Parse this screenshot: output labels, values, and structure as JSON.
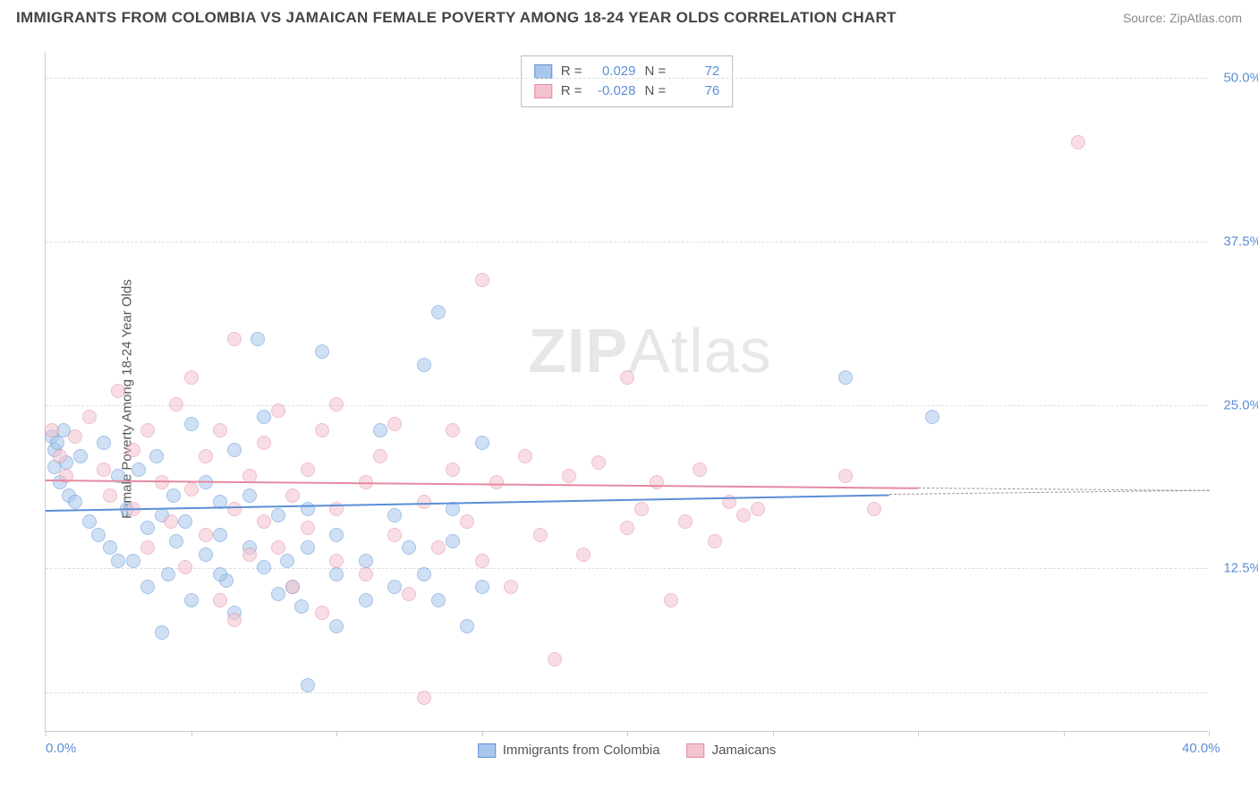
{
  "title": "IMMIGRANTS FROM COLOMBIA VS JAMAICAN FEMALE POVERTY AMONG 18-24 YEAR OLDS CORRELATION CHART",
  "source": "Source: ZipAtlas.com",
  "y_axis_label": "Female Poverty Among 18-24 Year Olds",
  "watermark_bold": "ZIP",
  "watermark_light": "Atlas",
  "chart": {
    "type": "scatter",
    "xlim": [
      0,
      40
    ],
    "ylim": [
      0,
      52
    ],
    "x_ticks": [
      0,
      5,
      10,
      15,
      20,
      25,
      30,
      35,
      40
    ],
    "x_tick_labels": {
      "0": "0.0%",
      "40": "40.0%"
    },
    "y_ticks": [
      12.5,
      25.0,
      37.5,
      50.0
    ],
    "y_tick_labels": [
      "12.5%",
      "25.0%",
      "37.5%",
      "50.0%"
    ],
    "grid_y": [
      3,
      12.5,
      25.0,
      37.5,
      50.0
    ],
    "background_color": "#ffffff",
    "grid_color": "#dddddd",
    "axis_color": "#cccccc",
    "tick_label_color": "#5b8fd6",
    "point_radius": 8,
    "point_opacity": 0.55,
    "series": [
      {
        "name": "Immigrants from Colombia",
        "fill": "#a9c7ec",
        "stroke": "#5b8fd6",
        "R": "0.029",
        "N": "72",
        "trend": {
          "x1": 0,
          "y1": 17.0,
          "x2": 29,
          "y2": 18.2,
          "dash_to_x": 40,
          "dash_to_y": 18.5
        },
        "points": [
          [
            0.2,
            22.5
          ],
          [
            0.3,
            21.5
          ],
          [
            0.3,
            20.2
          ],
          [
            0.4,
            22.0
          ],
          [
            0.5,
            19.0
          ],
          [
            0.6,
            23.0
          ],
          [
            0.7,
            20.5
          ],
          [
            0.8,
            18.0
          ],
          [
            1.0,
            17.5
          ],
          [
            1.2,
            21.0
          ],
          [
            1.5,
            16.0
          ],
          [
            1.8,
            15.0
          ],
          [
            2.0,
            22.0
          ],
          [
            2.2,
            14.0
          ],
          [
            2.5,
            19.5
          ],
          [
            2.8,
            17.0
          ],
          [
            3.0,
            13.0
          ],
          [
            3.2,
            20.0
          ],
          [
            3.5,
            11.0
          ],
          [
            3.5,
            15.5
          ],
          [
            3.8,
            21.0
          ],
          [
            4.0,
            7.5
          ],
          [
            4.2,
            12.0
          ],
          [
            4.4,
            18.0
          ],
          [
            4.5,
            14.5
          ],
          [
            4.8,
            16.0
          ],
          [
            5.0,
            10.0
          ],
          [
            5.0,
            23.5
          ],
          [
            5.5,
            13.5
          ],
          [
            5.5,
            19.0
          ],
          [
            6.0,
            15.0
          ],
          [
            6.0,
            17.5
          ],
          [
            6.2,
            11.5
          ],
          [
            6.5,
            9.0
          ],
          [
            6.5,
            21.5
          ],
          [
            7.0,
            14.0
          ],
          [
            7.0,
            18.0
          ],
          [
            7.3,
            30.0
          ],
          [
            7.5,
            12.5
          ],
          [
            7.5,
            24.0
          ],
          [
            8.0,
            10.5
          ],
          [
            8.0,
            16.5
          ],
          [
            8.3,
            13.0
          ],
          [
            8.5,
            11.0
          ],
          [
            8.8,
            9.5
          ],
          [
            9.0,
            14.0
          ],
          [
            9.0,
            17.0
          ],
          [
            9.0,
            3.5
          ],
          [
            9.5,
            29.0
          ],
          [
            10.0,
            8.0
          ],
          [
            10.0,
            12.0
          ],
          [
            10.0,
            15.0
          ],
          [
            11.0,
            10.0
          ],
          [
            11.0,
            13.0
          ],
          [
            11.5,
            23.0
          ],
          [
            12.0,
            11.0
          ],
          [
            12.0,
            16.5
          ],
          [
            12.5,
            14.0
          ],
          [
            13.0,
            12.0
          ],
          [
            13.0,
            28.0
          ],
          [
            13.5,
            10.0
          ],
          [
            13.5,
            32.0
          ],
          [
            14.0,
            14.5
          ],
          [
            14.0,
            17.0
          ],
          [
            14.5,
            8.0
          ],
          [
            15.0,
            11.0
          ],
          [
            15.0,
            22.0
          ],
          [
            27.5,
            27.0
          ],
          [
            30.5,
            24.0
          ],
          [
            4.0,
            16.5
          ],
          [
            2.5,
            13.0
          ],
          [
            6.0,
            12.0
          ]
        ]
      },
      {
        "name": "Jamaicans",
        "fill": "#f3c4cf",
        "stroke": "#e48aa0",
        "R": "-0.028",
        "N": "76",
        "trend": {
          "x1": 0,
          "y1": 19.3,
          "x2": 30,
          "y2": 18.7,
          "dash_to_x": 40,
          "dash_to_y": 18.5
        },
        "points": [
          [
            0.2,
            23.0
          ],
          [
            0.5,
            21.0
          ],
          [
            0.7,
            19.5
          ],
          [
            1.0,
            22.5
          ],
          [
            1.5,
            24.0
          ],
          [
            2.0,
            20.0
          ],
          [
            2.2,
            18.0
          ],
          [
            2.5,
            26.0
          ],
          [
            3.0,
            17.0
          ],
          [
            3.0,
            21.5
          ],
          [
            3.5,
            23.0
          ],
          [
            3.5,
            14.0
          ],
          [
            4.0,
            19.0
          ],
          [
            4.3,
            16.0
          ],
          [
            4.5,
            25.0
          ],
          [
            4.8,
            12.5
          ],
          [
            5.0,
            27.0
          ],
          [
            5.0,
            18.5
          ],
          [
            5.5,
            15.0
          ],
          [
            5.5,
            21.0
          ],
          [
            6.0,
            10.0
          ],
          [
            6.0,
            23.0
          ],
          [
            6.5,
            17.0
          ],
          [
            6.5,
            30.0
          ],
          [
            7.0,
            13.5
          ],
          [
            7.0,
            19.5
          ],
          [
            7.5,
            22.0
          ],
          [
            7.5,
            16.0
          ],
          [
            8.0,
            24.5
          ],
          [
            8.0,
            14.0
          ],
          [
            8.5,
            18.0
          ],
          [
            8.5,
            11.0
          ],
          [
            9.0,
            20.0
          ],
          [
            9.0,
            15.5
          ],
          [
            9.5,
            23.0
          ],
          [
            9.5,
            9.0
          ],
          [
            10.0,
            17.0
          ],
          [
            10.0,
            13.0
          ],
          [
            10.0,
            25.0
          ],
          [
            11.0,
            19.0
          ],
          [
            11.0,
            12.0
          ],
          [
            11.5,
            21.0
          ],
          [
            12.0,
            15.0
          ],
          [
            12.0,
            23.5
          ],
          [
            12.5,
            10.5
          ],
          [
            13.0,
            17.5
          ],
          [
            13.0,
            2.5
          ],
          [
            13.5,
            14.0
          ],
          [
            14.0,
            20.0
          ],
          [
            14.0,
            23.0
          ],
          [
            14.5,
            16.0
          ],
          [
            15.0,
            34.5
          ],
          [
            15.0,
            13.0
          ],
          [
            15.5,
            19.0
          ],
          [
            16.0,
            11.0
          ],
          [
            16.5,
            21.0
          ],
          [
            17.0,
            15.0
          ],
          [
            17.5,
            5.5
          ],
          [
            18.0,
            19.5
          ],
          [
            18.5,
            13.5
          ],
          [
            19.0,
            20.5
          ],
          [
            20.0,
            27.0
          ],
          [
            20.0,
            15.5
          ],
          [
            20.5,
            17.0
          ],
          [
            21.0,
            19.0
          ],
          [
            21.5,
            10.0
          ],
          [
            22.0,
            16.0
          ],
          [
            22.5,
            20.0
          ],
          [
            23.0,
            14.5
          ],
          [
            23.5,
            17.5
          ],
          [
            24.0,
            16.5
          ],
          [
            24.5,
            17.0
          ],
          [
            27.5,
            19.5
          ],
          [
            28.5,
            17.0
          ],
          [
            35.5,
            45.0
          ],
          [
            6.5,
            8.5
          ]
        ]
      }
    ]
  },
  "stats_box": {
    "R_label": "R =",
    "N_label": "N ="
  },
  "legend": {
    "series1": "Immigrants from Colombia",
    "series2": "Jamaicans"
  }
}
